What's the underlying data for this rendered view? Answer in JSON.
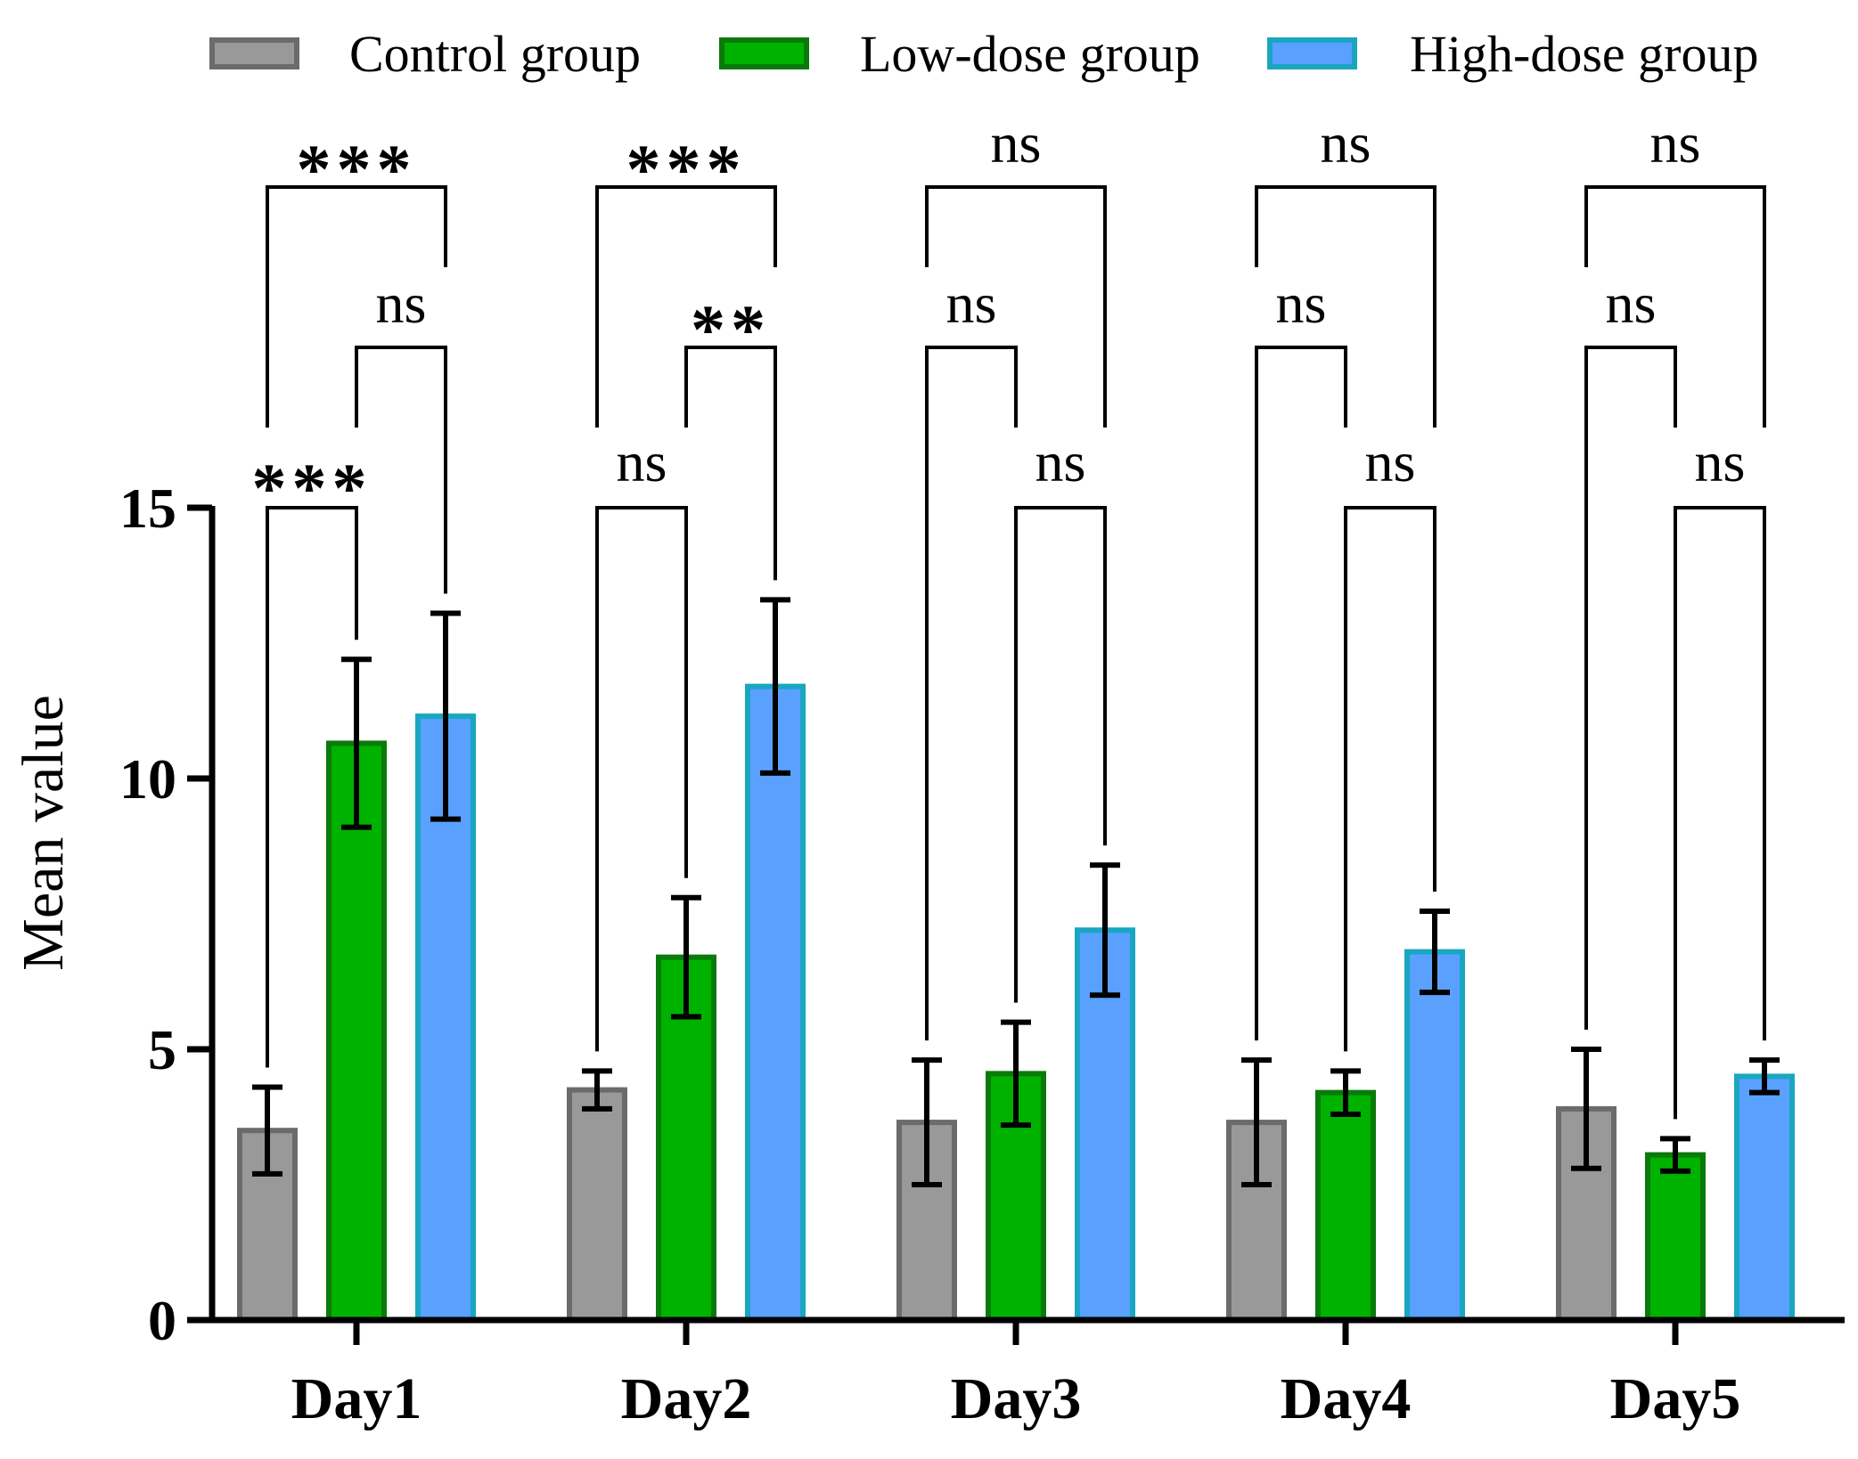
{
  "chart_data": {
    "type": "bar",
    "title": "",
    "xlabel": "",
    "ylabel": "Mean value",
    "ylim": [
      0,
      15
    ],
    "yticks": [
      "0",
      "5",
      "10",
      "15"
    ],
    "categories": [
      "Day1",
      "Day2",
      "Day3",
      "Day4",
      "Day5"
    ],
    "series": [
      {
        "name": "Control group",
        "fill": "#999999",
        "stroke": "#6b6b6b",
        "values": [
          3.5,
          4.25,
          3.65,
          3.65,
          3.9
        ],
        "errors": [
          0.8,
          0.35,
          1.15,
          1.15,
          1.1
        ]
      },
      {
        "name": "Low-dose group",
        "fill": "#00b200",
        "stroke": "#0a7a0a",
        "values": [
          10.65,
          6.7,
          4.55,
          4.2,
          3.05
        ],
        "errors": [
          1.55,
          1.1,
          0.95,
          0.4,
          0.3
        ]
      },
      {
        "name": "High-dose group",
        "fill": "#5aa0ff",
        "stroke": "#1aa6c0",
        "values": [
          11.15,
          11.7,
          7.2,
          6.8,
          4.5
        ],
        "errors": [
          1.9,
          1.6,
          1.2,
          0.75,
          0.3
        ]
      }
    ],
    "comparisons": [
      [
        {
          "pair": "control-low",
          "label": "***"
        },
        {
          "pair": "low-high",
          "label": "ns"
        },
        {
          "pair": "control-high",
          "label": "***"
        }
      ],
      [
        {
          "pair": "control-low",
          "label": "ns"
        },
        {
          "pair": "low-high",
          "label": "**"
        },
        {
          "pair": "control-high",
          "label": "***"
        }
      ],
      [
        {
          "pair": "low-high",
          "label": "ns"
        },
        {
          "pair": "control-low",
          "label": "ns"
        },
        {
          "pair": "control-high",
          "label": "ns"
        }
      ],
      [
        {
          "pair": "low-high",
          "label": "ns"
        },
        {
          "pair": "control-low",
          "label": "ns"
        },
        {
          "pair": "control-high",
          "label": "ns"
        }
      ],
      [
        {
          "pair": "low-high",
          "label": "ns"
        },
        {
          "pair": "control-low",
          "label": "ns"
        },
        {
          "pair": "control-high",
          "label": "ns"
        }
      ]
    ]
  }
}
